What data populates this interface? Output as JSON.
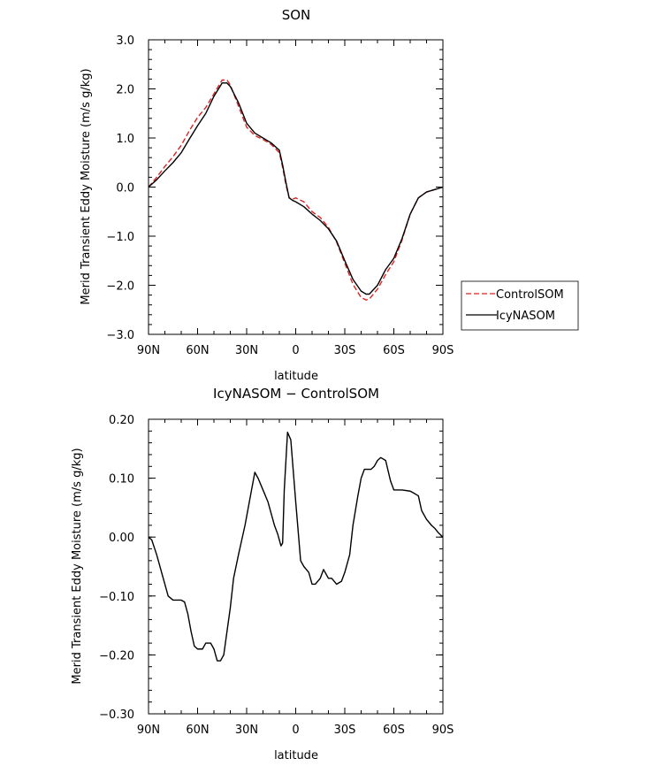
{
  "chart_data": [
    {
      "type": "line",
      "title": "SON",
      "xlabel": "latitude",
      "ylabel": "Merid Transient Eddy Moisture (m/s g/kg)",
      "x_tick_labels": [
        "90N",
        "60N",
        "30N",
        "0",
        "30S",
        "60S",
        "90S"
      ],
      "x_tick_values": [
        90,
        60,
        30,
        0,
        -30,
        -60,
        -90
      ],
      "xlim": [
        90,
        -90
      ],
      "y_tick_labels": [
        "3.0",
        "2.0",
        "1.0",
        "0.0",
        "−1.0",
        "−2.0",
        "−3.0"
      ],
      "y_tick_values": [
        3,
        2,
        1,
        0,
        -1,
        -2,
        -3
      ],
      "ylim": [
        -3,
        3
      ],
      "grid": false,
      "legend_position": "right",
      "series": [
        {
          "name": "ControlSOM",
          "color": "#dd2222",
          "dash": true,
          "x": [
            90,
            85,
            80,
            75,
            70,
            65,
            60,
            55,
            50,
            45,
            42,
            40,
            35,
            30,
            25,
            20,
            15,
            10,
            8,
            6,
            4,
            2,
            0,
            -5,
            -10,
            -15,
            -20,
            -25,
            -30,
            -35,
            -40,
            -43,
            -45,
            -50,
            -55,
            -60,
            -65,
            -70,
            -75,
            -80,
            -85,
            -90
          ],
          "values": [
            0.0,
            0.2,
            0.42,
            0.62,
            0.85,
            1.15,
            1.42,
            1.62,
            1.9,
            2.18,
            2.18,
            2.08,
            1.65,
            1.22,
            1.05,
            0.97,
            0.87,
            0.7,
            0.4,
            0.05,
            -0.22,
            -0.25,
            -0.22,
            -0.3,
            -0.5,
            -0.62,
            -0.82,
            -1.12,
            -1.55,
            -1.98,
            -2.25,
            -2.3,
            -2.28,
            -2.08,
            -1.78,
            -1.52,
            -1.08,
            -0.55,
            -0.22,
            -0.1,
            -0.05,
            0.0
          ]
        },
        {
          "name": "IcyNASOM",
          "color": "#000000",
          "dash": false,
          "x": [
            90,
            85,
            80,
            75,
            70,
            65,
            60,
            55,
            50,
            45,
            42,
            40,
            35,
            30,
            25,
            20,
            15,
            10,
            8,
            6,
            4,
            2,
            0,
            -5,
            -10,
            -15,
            -20,
            -25,
            -30,
            -35,
            -40,
            -43,
            -45,
            -50,
            -55,
            -60,
            -65,
            -70,
            -75,
            -80,
            -85,
            -90
          ],
          "values": [
            0.0,
            0.15,
            0.33,
            0.5,
            0.7,
            0.98,
            1.25,
            1.5,
            1.85,
            2.12,
            2.12,
            2.05,
            1.72,
            1.3,
            1.1,
            1.0,
            0.9,
            0.75,
            0.45,
            0.1,
            -0.22,
            -0.27,
            -0.3,
            -0.4,
            -0.55,
            -0.68,
            -0.85,
            -1.1,
            -1.5,
            -1.88,
            -2.12,
            -2.18,
            -2.18,
            -2.0,
            -1.68,
            -1.45,
            -1.05,
            -0.55,
            -0.22,
            -0.1,
            -0.05,
            0.0
          ]
        }
      ]
    },
    {
      "type": "line",
      "title": "IcyNASOM − ControlSOM",
      "xlabel": "latitude",
      "ylabel": "Merid Transient Eddy Moisture (m/s g/kg)",
      "x_tick_labels": [
        "90N",
        "60N",
        "30N",
        "0",
        "30S",
        "60S",
        "90S"
      ],
      "x_tick_values": [
        90,
        60,
        30,
        0,
        -30,
        -60,
        -90
      ],
      "xlim": [
        90,
        -90
      ],
      "y_tick_labels": [
        "0.20",
        "0.10",
        "0.00",
        "−0.10",
        "−0.20",
        "−0.30"
      ],
      "y_tick_values": [
        0.2,
        0.1,
        0.0,
        -0.1,
        -0.2,
        -0.3
      ],
      "ylim": [
        -0.3,
        0.2
      ],
      "grid": false,
      "series": [
        {
          "color": "#000000",
          "dash": false,
          "x": [
            90,
            88,
            85,
            82,
            80,
            78,
            75,
            72,
            70,
            68,
            66,
            64,
            62,
            60,
            57,
            55,
            52,
            50,
            48,
            46,
            44,
            42,
            40,
            38,
            35,
            33,
            31,
            29,
            27,
            25,
            23,
            20,
            17,
            15,
            13,
            11,
            9,
            8,
            7,
            5,
            3,
            0,
            -3,
            -5,
            -8,
            -10,
            -12,
            -15,
            -17,
            -20,
            -22,
            -25,
            -28,
            -30,
            -33,
            -35,
            -38,
            -40,
            -42,
            -44,
            -46,
            -48,
            -50,
            -52,
            -55,
            -58,
            -60,
            -63,
            -65,
            -70,
            -72,
            -75,
            -77,
            -80,
            -83,
            -85,
            -87,
            -90
          ],
          "values": [
            0.0,
            -0.005,
            -0.03,
            -0.06,
            -0.08,
            -0.1,
            -0.107,
            -0.107,
            -0.107,
            -0.11,
            -0.13,
            -0.16,
            -0.185,
            -0.19,
            -0.19,
            -0.18,
            -0.18,
            -0.19,
            -0.21,
            -0.21,
            -0.2,
            -0.16,
            -0.12,
            -0.07,
            -0.03,
            -0.005,
            0.02,
            0.05,
            0.08,
            0.11,
            0.1,
            0.08,
            0.06,
            0.04,
            0.02,
            0.005,
            -0.015,
            -0.01,
            0.08,
            0.178,
            0.165,
            0.06,
            -0.04,
            -0.05,
            -0.06,
            -0.08,
            -0.08,
            -0.07,
            -0.055,
            -0.07,
            -0.07,
            -0.08,
            -0.075,
            -0.06,
            -0.03,
            0.02,
            0.07,
            0.1,
            0.115,
            0.115,
            0.115,
            0.12,
            0.13,
            0.135,
            0.13,
            0.095,
            0.08,
            0.08,
            0.08,
            0.078,
            0.075,
            0.07,
            0.045,
            0.03,
            0.02,
            0.015,
            0.008,
            0.0
          ]
        }
      ]
    }
  ]
}
